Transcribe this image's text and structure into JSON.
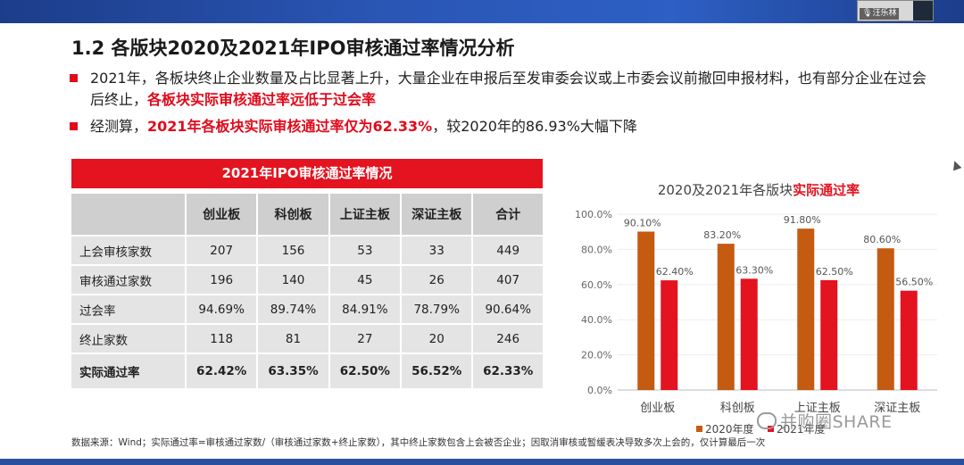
{
  "meeting": {
    "participant_name": "汪乐林"
  },
  "slide": {
    "title": "1.2 各版块2020及2021年IPO审核通过率情况分析",
    "bullet1": {
      "text_a": "2021年，各板块终止企业数量及占比显著上升，大量企业在申报后至发审委会议或上市委会议前撤回申报材料，也有部分企业在过会后终止，",
      "text_red": "各板块实际审核通过率远低于过会率"
    },
    "bullet2": {
      "text_a": "经测算，",
      "text_red": "2021年各板块实际审核通过率仅为62.33%",
      "text_b": "，较2020年的86.93%大幅下降"
    },
    "table": {
      "title": "2021年IPO审核通过率情况",
      "columns": [
        "创业板",
        "科创板",
        "上证主板",
        "深证主板",
        "合计"
      ],
      "rows": [
        {
          "label": "上会审核家数",
          "values": [
            "207",
            "156",
            "53",
            "33",
            "449"
          ]
        },
        {
          "label": "审核通过家数",
          "values": [
            "196",
            "140",
            "45",
            "26",
            "407"
          ]
        },
        {
          "label": "过会率",
          "values": [
            "94.69%",
            "89.74%",
            "84.91%",
            "78.79%",
            "90.64%"
          ]
        },
        {
          "label": "终止家数",
          "values": [
            "118",
            "81",
            "27",
            "20",
            "246"
          ]
        },
        {
          "label": "实际通过率",
          "values": [
            "62.42%",
            "63.35%",
            "62.50%",
            "56.52%",
            "62.33%"
          ]
        }
      ]
    },
    "footnote": "数据来源：Wind；实际通过率=审核通过家数/（审核通过家数+终止家数），其中终止家数包含上会被否企业；因取消审核或暂缓表决导致多次上会的，仅计算最后一次",
    "watermark": "并购圈SHARE"
  },
  "chart_data": {
    "type": "bar",
    "title_prefix": "2020及2021年各版块",
    "title_highlight": "实际通过率",
    "categories": [
      "创业板",
      "科创板",
      "上证主板",
      "深证主板"
    ],
    "series": [
      {
        "name": "2020年度",
        "values": [
          90.1,
          83.2,
          91.8,
          80.6
        ],
        "labels": [
          "90.10%",
          "83.20%",
          "91.80%",
          "80.60%"
        ],
        "color": "#c55a11"
      },
      {
        "name": "2021年度",
        "values": [
          62.4,
          63.3,
          62.5,
          56.5
        ],
        "labels": [
          "62.40%",
          "63.30%",
          "62.50%",
          "56.50%"
        ],
        "color": "#e3131f"
      }
    ],
    "yticks": [
      "0.0%",
      "20.0%",
      "40.0%",
      "60.0%",
      "80.0%",
      "100.0%"
    ],
    "ylim": [
      0,
      100
    ],
    "legend": "bottom"
  }
}
